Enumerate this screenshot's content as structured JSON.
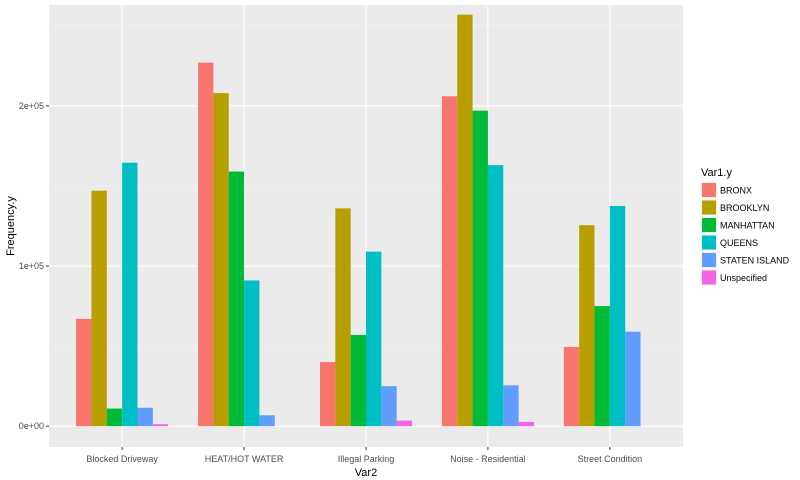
{
  "chart_data": {
    "type": "bar",
    "title": "",
    "xlabel": "Var2",
    "ylabel": "Frequency.y",
    "ylim": [
      -13000,
      263000
    ],
    "yticks": [
      {
        "value": 0,
        "label": "0e+00"
      },
      {
        "value": 100000,
        "label": "1e+05"
      },
      {
        "value": 200000,
        "label": "2e+05"
      }
    ],
    "categories": [
      "Blocked Driveway",
      "HEAT/HOT WATER",
      "Illegal Parking",
      "Noise - Residential",
      "Street Condition"
    ],
    "legend_title": "Var1.y",
    "legend_position": "right",
    "series": [
      {
        "name": "BRONX",
        "color": "#F8766D",
        "values": [
          67000,
          227000,
          40000,
          206000,
          49500
        ]
      },
      {
        "name": "BROOKLYN",
        "color": "#B79F00",
        "values": [
          147000,
          208000,
          136000,
          257000,
          125500
        ]
      },
      {
        "name": "MANHATTAN",
        "color": "#00BA38",
        "values": [
          11000,
          159000,
          57000,
          197000,
          75000
        ]
      },
      {
        "name": "QUEENS",
        "color": "#00BFC4",
        "values": [
          164500,
          91000,
          109000,
          163000,
          137500
        ]
      },
      {
        "name": "STATEN ISLAND",
        "color": "#619CFF",
        "values": [
          11500,
          6800,
          25000,
          25500,
          59000
        ]
      },
      {
        "name": "Unspecified",
        "color": "#F564E3",
        "values": [
          1200,
          0,
          3500,
          2700,
          0
        ]
      }
    ]
  }
}
